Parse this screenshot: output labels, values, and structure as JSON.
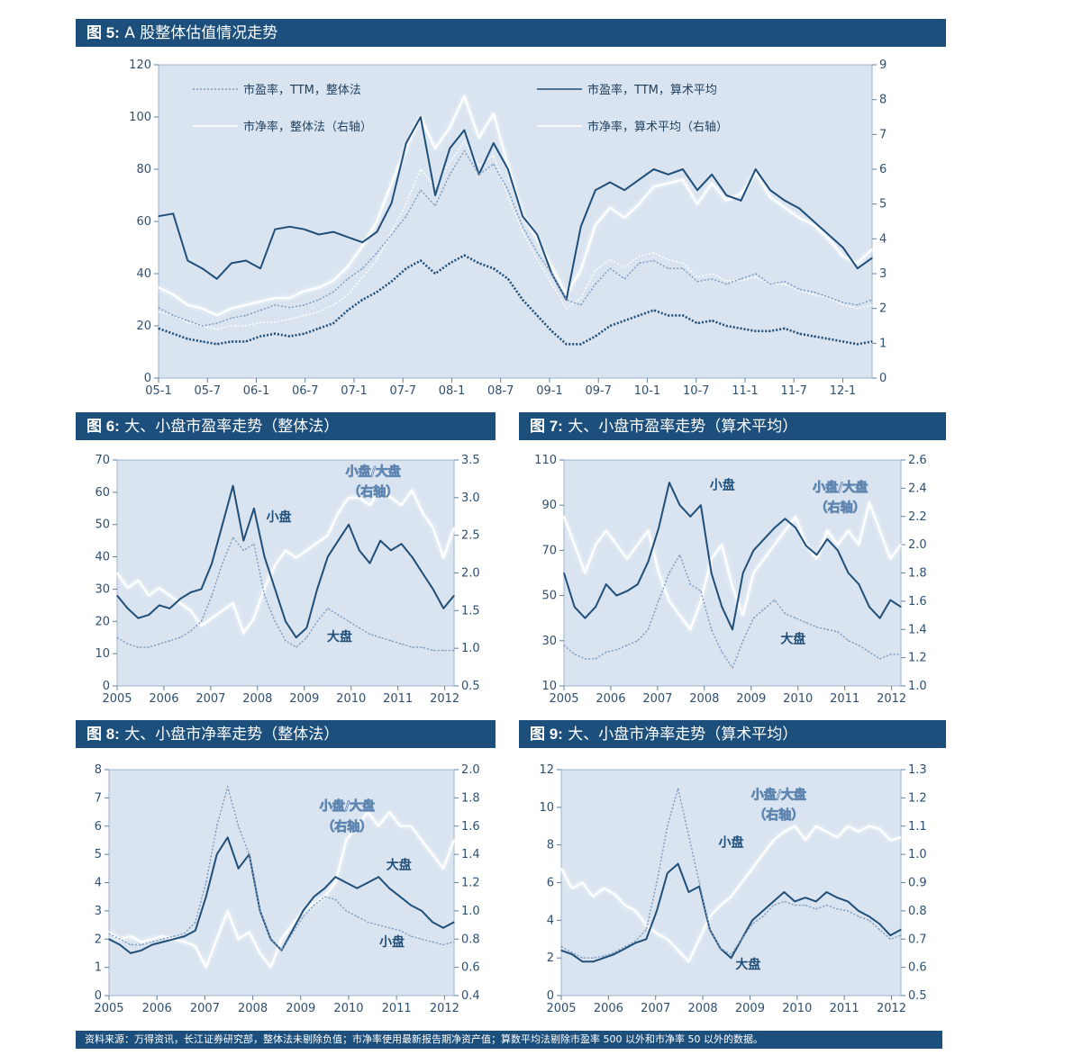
{
  "colors": {
    "header_bg": "#1c4f7c",
    "plot_bg": "#d9e4f0",
    "dark_line": "#1f4e79",
    "light_line": "#ffffff",
    "dotted_line": "#6a8bb3"
  },
  "source_note": "资料来源：万得资讯，长江证券研究部，整体法未剔除负值；市净率使用最新报告期净资产值；算数平均法剔除市盈率 500 以外和市净率 50 以外的数据。",
  "figures": [
    {
      "label": "图 5:",
      "title": "A 股整体估值情况走势"
    },
    {
      "label": "图 6:",
      "title": "大、小盘市盈率走势（整体法）"
    },
    {
      "label": "图 7:",
      "title": "大、小盘市盈率走势（算术平均）"
    },
    {
      "label": "图 8:",
      "title": "大、小盘市净率走势（整体法）"
    },
    {
      "label": "图 9:",
      "title": "大、小盘市净率走势（算术平均）"
    }
  ],
  "chart_data": [
    {
      "type": "line",
      "x_labels": [
        "05-1",
        "05-7",
        "06-1",
        "06-7",
        "07-1",
        "07-7",
        "08-1",
        "08-7",
        "09-1",
        "09-7",
        "10-1",
        "10-7",
        "11-1",
        "11-7",
        "12-1"
      ],
      "ylim_left": [
        0,
        120
      ],
      "yticks_left": [
        0,
        20,
        40,
        60,
        80,
        100,
        120
      ],
      "ylim_right": [
        0,
        9
      ],
      "yticks_right": [
        0,
        1,
        2,
        3,
        4,
        5,
        6,
        7,
        8,
        9
      ],
      "legend": [
        {
          "name": "市盈率，TTM，整体法",
          "style": "dotted-light"
        },
        {
          "name": "市盈率，TTM，算术平均",
          "style": "solid-dark"
        },
        {
          "name": "市净率，整体法（右轴）",
          "style": "solid-white"
        },
        {
          "name": "市净率，算术平均（右轴）",
          "style": "solid-white"
        }
      ],
      "series": [
        {
          "style": "solid-dark",
          "axis": "left",
          "values": [
            62,
            63,
            45,
            42,
            38,
            44,
            45,
            42,
            57,
            58,
            57,
            55,
            56,
            54,
            52,
            56,
            67,
            90,
            100,
            70,
            88,
            95,
            78,
            90,
            80,
            62,
            55,
            40,
            30,
            58,
            72,
            75,
            72,
            76,
            80,
            78,
            80,
            72,
            78,
            70,
            68,
            80,
            72,
            68,
            65,
            60,
            55,
            50,
            42,
            46
          ]
        },
        {
          "style": "dotted-light",
          "axis": "left",
          "values": [
            27,
            24,
            22,
            20,
            21,
            23,
            24,
            26,
            28,
            27,
            28,
            30,
            33,
            38,
            42,
            48,
            55,
            62,
            72,
            66,
            78,
            87,
            78,
            82,
            72,
            58,
            48,
            40,
            30,
            28,
            36,
            42,
            38,
            44,
            45,
            42,
            42,
            37,
            38,
            36,
            38,
            40,
            36,
            37,
            34,
            33,
            31,
            29,
            28,
            30
          ]
        },
        {
          "style": "dotted-dark",
          "axis": "left",
          "values": [
            19,
            17,
            15,
            14,
            13,
            14,
            14,
            16,
            17,
            16,
            17,
            19,
            21,
            26,
            30,
            33,
            37,
            42,
            45,
            40,
            44,
            47,
            44,
            42,
            38,
            30,
            24,
            18,
            13,
            13,
            16,
            20,
            22,
            24,
            26,
            24,
            24,
            21,
            22,
            20,
            19,
            18,
            18,
            19,
            17,
            16,
            15,
            14,
            13,
            14
          ]
        },
        {
          "style": "solid-white",
          "axis": "right",
          "values": [
            2.6,
            2.4,
            2.1,
            2.0,
            1.8,
            2.0,
            2.1,
            2.2,
            2.3,
            2.3,
            2.5,
            2.6,
            2.8,
            3.2,
            3.8,
            4.5,
            5.6,
            6.6,
            7.5,
            6.6,
            7.2,
            8.1,
            6.9,
            7.6,
            6.1,
            4.7,
            4.0,
            3.2,
            2.4,
            3.1,
            4.4,
            4.9,
            4.6,
            5.0,
            5.5,
            5.6,
            5.7,
            5.0,
            5.6,
            5.1,
            5.3,
            5.9,
            5.2,
            4.9,
            4.6,
            4.4,
            4.0,
            3.5,
            3.3,
            3.7
          ]
        },
        {
          "style": "solid-white-thin",
          "axis": "right",
          "values": [
            1.9,
            1.8,
            1.6,
            1.5,
            1.4,
            1.5,
            1.5,
            1.6,
            1.6,
            1.7,
            1.8,
            1.9,
            2.1,
            2.4,
            2.9,
            3.4,
            4.2,
            5.0,
            6.0,
            5.5,
            6.2,
            6.8,
            6.1,
            6.4,
            5.2,
            4.2,
            3.4,
            2.7,
            2.0,
            2.3,
            3.1,
            3.4,
            3.2,
            3.5,
            3.6,
            3.4,
            3.3,
            2.9,
            3.0,
            2.8,
            2.8,
            2.9,
            2.7,
            2.7,
            2.5,
            2.4,
            2.3,
            2.1,
            2.0,
            2.1
          ]
        }
      ]
    },
    {
      "type": "line",
      "x_labels": [
        "2005",
        "2006",
        "2007",
        "2008",
        "2009",
        "2010",
        "2011",
        "2012"
      ],
      "ylim_left": [
        0,
        70
      ],
      "yticks_left": [
        0,
        10,
        20,
        30,
        40,
        50,
        60,
        70
      ],
      "ylim_right": [
        0.5,
        3.5
      ],
      "yticks_right": [
        "0.5",
        "1.0",
        "1.5",
        "2.0",
        "2.5",
        "3.0",
        "3.5"
      ],
      "annotations": [
        "小盘",
        "大盘",
        "小盘/大盘",
        "（右轴）"
      ],
      "series": [
        {
          "name": "小盘",
          "style": "solid-dark",
          "axis": "left",
          "values": [
            28,
            24,
            21,
            22,
            25,
            24,
            27,
            29,
            30,
            38,
            50,
            62,
            45,
            55,
            40,
            30,
            20,
            15,
            18,
            30,
            40,
            45,
            50,
            42,
            38,
            45,
            42,
            44,
            40,
            35,
            30,
            24,
            28
          ]
        },
        {
          "name": "大盘",
          "style": "dotted-light",
          "axis": "left",
          "values": [
            15,
            13,
            12,
            12,
            13,
            14,
            15,
            17,
            20,
            28,
            38,
            46,
            42,
            44,
            28,
            20,
            14,
            12,
            15,
            20,
            24,
            22,
            20,
            18,
            16,
            15,
            14,
            13,
            12,
            12,
            11,
            11,
            11
          ]
        },
        {
          "name": "小盘/大盘（右轴）",
          "style": "solid-white",
          "axis": "right",
          "values": [
            2.0,
            1.8,
            1.9,
            1.7,
            1.8,
            1.7,
            1.6,
            1.5,
            1.3,
            1.4,
            1.5,
            1.6,
            1.2,
            1.4,
            1.8,
            2.1,
            2.3,
            2.2,
            2.3,
            2.4,
            2.5,
            2.8,
            3.0,
            3.0,
            2.9,
            3.1,
            3.0,
            2.9,
            3.1,
            2.8,
            2.6,
            2.2,
            2.6
          ]
        }
      ]
    },
    {
      "type": "line",
      "x_labels": [
        "2005",
        "2006",
        "2007",
        "2008",
        "2009",
        "2010",
        "2011",
        "2012"
      ],
      "ylim_left": [
        10,
        110
      ],
      "yticks_left": [
        10,
        30,
        50,
        70,
        90,
        110
      ],
      "ylim_right": [
        1.0,
        2.6
      ],
      "yticks_right": [
        "1.0",
        "1.2",
        "1.4",
        "1.6",
        "1.8",
        "2.0",
        "2.2",
        "2.4",
        "2.6"
      ],
      "annotations": [
        "小盘",
        "大盘",
        "小盘/大盘",
        "（右轴）"
      ],
      "series": [
        {
          "name": "小盘",
          "style": "solid-dark",
          "axis": "left",
          "values": [
            60,
            45,
            40,
            45,
            55,
            50,
            52,
            55,
            65,
            80,
            100,
            90,
            85,
            90,
            60,
            45,
            35,
            60,
            70,
            75,
            80,
            84,
            80,
            72,
            68,
            75,
            70,
            60,
            55,
            45,
            40,
            48,
            45
          ]
        },
        {
          "name": "大盘",
          "style": "dotted-light",
          "axis": "left",
          "values": [
            28,
            24,
            22,
            22,
            25,
            26,
            28,
            30,
            35,
            48,
            60,
            68,
            55,
            52,
            35,
            25,
            18,
            30,
            40,
            44,
            48,
            42,
            40,
            38,
            36,
            35,
            34,
            30,
            28,
            25,
            22,
            24,
            24
          ]
        },
        {
          "name": "小盘/大盘（右轴）",
          "style": "solid-white",
          "axis": "right",
          "values": [
            2.2,
            2.0,
            1.8,
            2.0,
            2.1,
            2.0,
            1.9,
            2.0,
            2.1,
            1.8,
            1.6,
            1.5,
            1.4,
            1.6,
            1.9,
            2.0,
            1.7,
            1.5,
            1.8,
            1.9,
            2.0,
            2.1,
            2.2,
            2.0,
            1.9,
            2.1,
            2.0,
            2.1,
            2.0,
            2.3,
            2.1,
            1.9,
            2.0
          ]
        }
      ]
    },
    {
      "type": "line",
      "x_labels": [
        "2005",
        "2006",
        "2007",
        "2008",
        "2009",
        "2010",
        "2011",
        "2012"
      ],
      "ylim_left": [
        0,
        8
      ],
      "yticks_left": [
        0,
        1,
        2,
        3,
        4,
        5,
        6,
        7,
        8
      ],
      "ylim_right": [
        0.4,
        2.0
      ],
      "yticks_right": [
        "0.4",
        "0.6",
        "0.8",
        "1.0",
        "1.2",
        "1.4",
        "1.6",
        "1.8",
        "2.0"
      ],
      "annotations": [
        "大盘",
        "小盘",
        "小盘/大盘",
        "（右轴）"
      ],
      "series": [
        {
          "name": "大盘",
          "style": "solid-dark",
          "axis": "left",
          "values": [
            2.0,
            1.8,
            1.5,
            1.6,
            1.8,
            1.9,
            2.0,
            2.1,
            2.3,
            3.5,
            5.0,
            5.6,
            4.5,
            5.0,
            3.0,
            2.0,
            1.6,
            2.3,
            3.0,
            3.5,
            3.8,
            4.2,
            4.0,
            3.8,
            4.0,
            4.2,
            3.8,
            3.5,
            3.2,
            3.0,
            2.6,
            2.4,
            2.6
          ]
        },
        {
          "name": "小盘",
          "style": "dotted-light",
          "axis": "left",
          "values": [
            2.2,
            2.0,
            1.8,
            1.8,
            1.9,
            2.0,
            2.1,
            2.2,
            2.6,
            4.0,
            6.0,
            7.4,
            6.0,
            5.0,
            3.0,
            2.0,
            1.6,
            2.2,
            2.8,
            3.2,
            3.5,
            3.4,
            3.0,
            2.8,
            2.6,
            2.5,
            2.4,
            2.3,
            2.1,
            2.0,
            1.9,
            1.8,
            1.9
          ]
        },
        {
          "name": "小盘/大盘（右轴）",
          "style": "solid-white",
          "axis": "right",
          "values": [
            0.85,
            0.8,
            0.82,
            0.78,
            0.8,
            0.82,
            0.8,
            0.78,
            0.75,
            0.6,
            0.8,
            1.0,
            0.8,
            0.85,
            0.7,
            0.6,
            0.8,
            0.9,
            1.0,
            1.05,
            1.1,
            1.2,
            1.5,
            1.6,
            1.7,
            1.6,
            1.7,
            1.6,
            1.6,
            1.5,
            1.4,
            1.3,
            1.5
          ]
        }
      ]
    },
    {
      "type": "line",
      "x_labels": [
        "2005",
        "2006",
        "2007",
        "2008",
        "2009",
        "2010",
        "2011",
        "2012"
      ],
      "ylim_left": [
        0,
        12
      ],
      "yticks_left": [
        0,
        2,
        4,
        6,
        8,
        10,
        12
      ],
      "ylim_right": [
        0.5,
        1.3
      ],
      "yticks_right": [
        "0.5",
        "0.6",
        "0.7",
        "0.8",
        "0.9",
        "1.0",
        "1.1",
        "1.2",
        "1.3"
      ],
      "annotations": [
        "小盘",
        "大盘",
        "小盘/大盘",
        "（右轴）"
      ],
      "series": [
        {
          "name": "小盘",
          "style": "solid-dark",
          "axis": "left",
          "values": [
            2.4,
            2.2,
            1.8,
            1.8,
            2.0,
            2.2,
            2.5,
            2.8,
            3.0,
            4.5,
            6.5,
            7.0,
            5.5,
            5.8,
            3.5,
            2.5,
            2.0,
            3.0,
            4.0,
            4.5,
            5.0,
            5.5,
            5.0,
            5.2,
            5.0,
            5.5,
            5.2,
            5.0,
            4.5,
            4.2,
            3.8,
            3.2,
            3.5
          ]
        },
        {
          "name": "大盘",
          "style": "dotted-light",
          "axis": "left",
          "values": [
            2.6,
            2.3,
            2.0,
            2.0,
            2.1,
            2.3,
            2.6,
            2.9,
            3.5,
            6.0,
            9.0,
            11.0,
            8.5,
            6.0,
            3.5,
            2.5,
            2.2,
            3.0,
            3.8,
            4.2,
            4.8,
            5.0,
            4.8,
            4.8,
            4.6,
            4.8,
            4.6,
            4.5,
            4.2,
            4.0,
            3.5,
            3.0,
            3.2
          ]
        },
        {
          "name": "小盘/大盘（右轴）",
          "style": "solid-white",
          "axis": "right",
          "values": [
            0.95,
            0.88,
            0.9,
            0.85,
            0.88,
            0.86,
            0.82,
            0.8,
            0.75,
            0.72,
            0.7,
            0.66,
            0.62,
            0.7,
            0.78,
            0.82,
            0.85,
            0.9,
            0.95,
            1.0,
            1.05,
            1.08,
            1.1,
            1.05,
            1.1,
            1.08,
            1.06,
            1.1,
            1.08,
            1.1,
            1.09,
            1.05,
            1.06
          ]
        }
      ]
    }
  ]
}
